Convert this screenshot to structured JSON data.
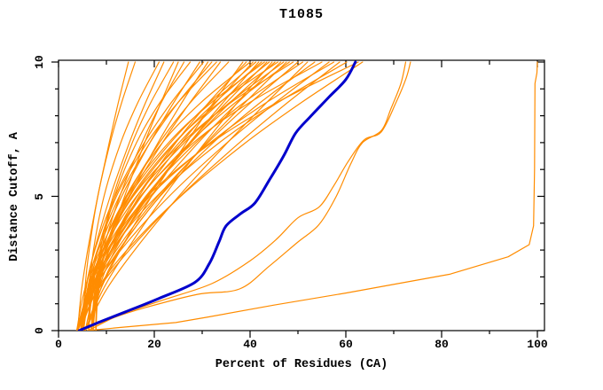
{
  "window": {
    "title": "T1085"
  },
  "chart_data": {
    "type": "line",
    "title": "T1085",
    "xlabel": "Percent of Residues (CA)",
    "ylabel": "Distance Cutoff, A",
    "xlim": [
      0,
      100
    ],
    "ylim": [
      0,
      10
    ],
    "x_major_ticks": [
      0,
      20,
      40,
      60,
      80,
      100
    ],
    "x_minor_ticks": [
      10,
      30,
      50,
      70,
      90
    ],
    "y_major_ticks": [
      0,
      5,
      10
    ],
    "y_minor_ticks": [
      1,
      2,
      3,
      4,
      6,
      7,
      8,
      9
    ],
    "grid": false,
    "legend": "none",
    "colors": {
      "model_line": "#ff8c00",
      "highlight_line": "#0000cc",
      "frame": "#000000",
      "background": "#ffffff",
      "text": "#000000"
    },
    "y_levels": [
      0,
      1.5,
      3,
      5,
      7,
      8.5,
      10
    ],
    "series": [
      {
        "name": "model-curve-01",
        "xs": [
          4.0,
          4.8,
          6.1,
          8.2,
          10.6,
          12.5,
          14.6
        ]
      },
      {
        "name": "model-curve-02",
        "xs": [
          5.2,
          5.5,
          6.4,
          8.2,
          10.8,
          13.2,
          16.0
        ]
      },
      {
        "name": "model-curve-03",
        "xs": [
          6.3,
          6.5,
          7.3,
          9.5,
          13.0,
          16.6,
          21.0
        ]
      },
      {
        "name": "model-curve-04",
        "xs": [
          4.6,
          5.6,
          7.5,
          10.8,
          14.8,
          18.2,
          22.0
        ]
      },
      {
        "name": "model-curve-05",
        "xs": [
          7.2,
          7.6,
          8.7,
          11.4,
          15.4,
          19.3,
          24.0
        ]
      },
      {
        "name": "model-curve-06",
        "xs": [
          5.6,
          7.4,
          9.9,
          13.8,
          18.0,
          21.4,
          25.0
        ]
      },
      {
        "name": "model-curve-07",
        "xs": [
          6.8,
          7.6,
          9.3,
          12.8,
          17.4,
          21.5,
          26.2
        ]
      },
      {
        "name": "model-curve-08",
        "xs": [
          7.8,
          8.0,
          9.0,
          11.7,
          16.3,
          21.2,
          27.5
        ]
      },
      {
        "name": "model-curve-09",
        "xs": [
          3.8,
          5.4,
          8.3,
          13.2,
          19.1,
          24.1,
          29.5
        ]
      },
      {
        "name": "model-curve-10",
        "xs": [
          5.0,
          5.7,
          7.6,
          11.8,
          17.9,
          23.6,
          30.3
        ]
      },
      {
        "name": "model-curve-11",
        "xs": [
          4.0,
          6.1,
          9.4,
          14.7,
          20.8,
          25.8,
          31.2
        ]
      },
      {
        "name": "model-curve-12",
        "xs": [
          5.2,
          6.0,
          8.1,
          12.7,
          19.1,
          25.0,
          32.0
        ]
      },
      {
        "name": "model-curve-13",
        "xs": [
          6.3,
          6.7,
          8.2,
          12.1,
          18.5,
          25.0,
          33.0
        ]
      },
      {
        "name": "model-curve-14",
        "xs": [
          4.6,
          6.3,
          9.4,
          14.9,
          21.7,
          27.5,
          33.8
        ]
      },
      {
        "name": "model-curve-15",
        "xs": [
          7.2,
          7.8,
          9.8,
          14.3,
          21.1,
          27.6,
          35.5
        ]
      },
      {
        "name": "model-curve-16",
        "xs": [
          5.6,
          8.7,
          12.9,
          19.4,
          26.7,
          32.4,
          38.5
        ]
      },
      {
        "name": "model-curve-17",
        "xs": [
          6.8,
          8.1,
          11.0,
          16.8,
          24.5,
          31.4,
          39.2
        ]
      },
      {
        "name": "model-curve-18",
        "xs": [
          7.8,
          8.2,
          9.7,
          14.1,
          21.7,
          29.8,
          40.0
        ]
      },
      {
        "name": "model-curve-19",
        "xs": [
          3.8,
          6.2,
          10.2,
          17.3,
          25.7,
          32.9,
          40.6
        ]
      },
      {
        "name": "model-curve-20",
        "xs": [
          5.0,
          6.0,
          8.7,
          14.7,
          23.4,
          31.6,
          41.2
        ]
      },
      {
        "name": "model-curve-21",
        "xs": [
          4.0,
          6.9,
          11.5,
          18.8,
          27.4,
          34.4,
          41.8
        ]
      },
      {
        "name": "model-curve-22",
        "xs": [
          5.2,
          6.3,
          9.2,
          15.5,
          24.4,
          32.7,
          42.4
        ]
      },
      {
        "name": "model-curve-23",
        "xs": [
          6.3,
          6.9,
          8.9,
          14.3,
          23.0,
          32.0,
          43.0
        ]
      },
      {
        "name": "model-curve-24",
        "xs": [
          4.6,
          6.9,
          11.0,
          18.4,
          27.4,
          35.1,
          43.5
        ]
      },
      {
        "name": "model-curve-25",
        "xs": [
          7.2,
          8.0,
          10.5,
          16.4,
          25.2,
          33.8,
          44.0
        ]
      },
      {
        "name": "model-curve-26",
        "xs": [
          5.6,
          9.2,
          14.3,
          22.0,
          30.6,
          37.4,
          44.6
        ]
      },
      {
        "name": "model-curve-27",
        "xs": [
          6.8,
          8.3,
          11.8,
          18.6,
          27.7,
          35.9,
          45.2
        ]
      },
      {
        "name": "model-curve-28",
        "xs": [
          7.8,
          8.2,
          10.0,
          15.3,
          24.2,
          33.7,
          45.8
        ]
      },
      {
        "name": "model-curve-29",
        "xs": [
          3.8,
          6.5,
          11.2,
          19.4,
          29.2,
          37.5,
          46.4
        ]
      },
      {
        "name": "model-curve-30",
        "xs": [
          5.0,
          6.1,
          9.3,
          16.3,
          26.3,
          35.8,
          47.0
        ]
      },
      {
        "name": "model-curve-31",
        "xs": [
          4.0,
          7.4,
          12.6,
          21.1,
          30.9,
          39.0,
          47.6
        ]
      },
      {
        "name": "model-curve-32",
        "xs": [
          5.2,
          6.5,
          9.8,
          17.2,
          27.4,
          37.0,
          48.2
        ]
      },
      {
        "name": "model-curve-33",
        "xs": [
          6.3,
          7.0,
          9.3,
          15.6,
          25.8,
          36.1,
          49.0
        ]
      },
      {
        "name": "model-curve-34",
        "xs": [
          4.6,
          7.2,
          12.1,
          20.7,
          31.2,
          40.2,
          50.0
        ]
      },
      {
        "name": "model-curve-35",
        "xs": [
          7.2,
          8.2,
          11.1,
          18.2,
          28.7,
          38.8,
          51.0
        ]
      },
      {
        "name": "model-curve-36",
        "xs": [
          5.6,
          9.9,
          15.9,
          25.1,
          35.3,
          43.5,
          52.0
        ]
      },
      {
        "name": "model-curve-37",
        "xs": [
          6.8,
          8.7,
          12.8,
          21.2,
          32.3,
          42.2,
          53.5
        ]
      },
      {
        "name": "model-curve-38",
        "xs": [
          7.8,
          8.4,
          10.6,
          17.1,
          28.2,
          40.0,
          55.0
        ]
      },
      {
        "name": "model-curve-39",
        "xs": [
          3.8,
          7.2,
          13.0,
          23.1,
          35.2,
          45.4,
          56.5
        ]
      },
      {
        "name": "model-curve-40",
        "xs": [
          5.0,
          6.4,
          10.4,
          19.1,
          31.7,
          43.5,
          57.5
        ]
      },
      {
        "name": "model-curve-41",
        "xs": [
          4.0,
          8.2,
          14.8,
          25.4,
          37.8,
          47.9,
          58.7
        ]
      },
      {
        "name": "model-curve-42",
        "xs": [
          5.2,
          6.8,
          11.1,
          20.5,
          33.6,
          45.9,
          60.2
        ]
      },
      {
        "name": "model-curve-43",
        "xs": [
          6.3,
          7.2,
          10.3,
          18.6,
          32.0,
          45.7,
          62.6
        ]
      },
      {
        "name": "model-curve-44",
        "xs": [
          4.6,
          8.0,
          14.3,
          25.5,
          39.1,
          50.8,
          63.5
        ]
      },
      {
        "name": "model-curve-45",
        "smooth": true,
        "points": [
          [
            5.0,
            0
          ],
          [
            11,
            0.45
          ],
          [
            18,
            0.85
          ],
          [
            29,
            1.35
          ],
          [
            37.8,
            1.55
          ],
          [
            44,
            2.4
          ],
          [
            50,
            3.3
          ],
          [
            54.4,
            3.95
          ],
          [
            58,
            5.0
          ],
          [
            61,
            6.2
          ],
          [
            63.5,
            7.0
          ],
          [
            67.4,
            7.45
          ],
          [
            69.5,
            8.3
          ],
          [
            71.5,
            9.2
          ],
          [
            72.5,
            10
          ]
        ]
      },
      {
        "name": "model-curve-46",
        "smooth": true,
        "points": [
          [
            6.2,
            0
          ],
          [
            13,
            0.6
          ],
          [
            22,
            1.15
          ],
          [
            32,
            1.75
          ],
          [
            40,
            2.6
          ],
          [
            45.5,
            3.4
          ],
          [
            50,
            4.2
          ],
          [
            54.4,
            4.6
          ],
          [
            57.5,
            5.4
          ],
          [
            60.5,
            6.3
          ],
          [
            63.8,
            7.1
          ],
          [
            67.4,
            7.4
          ],
          [
            70.5,
            8.5
          ],
          [
            72.6,
            9.4
          ],
          [
            73.5,
            10
          ]
        ]
      },
      {
        "name": "outlier-model-curve",
        "smooth": false,
        "points": [
          [
            6.0,
            0
          ],
          [
            13,
            0.12
          ],
          [
            24.5,
            0.3
          ],
          [
            31,
            0.5
          ],
          [
            45,
            0.95
          ],
          [
            60,
            1.4
          ],
          [
            69.3,
            1.7
          ],
          [
            81.7,
            2.1
          ],
          [
            93.9,
            2.75
          ],
          [
            98.3,
            3.2
          ],
          [
            99.2,
            3.9
          ],
          [
            99.4,
            6.0
          ],
          [
            99.5,
            9.2
          ],
          [
            99.9,
            9.6
          ],
          [
            100,
            10
          ]
        ]
      }
    ],
    "highlight_series": {
      "name": "highlighted-model-curve",
      "smooth": true,
      "points": [
        [
          4.3,
          0
        ],
        [
          9,
          0.35
        ],
        [
          14,
          0.7
        ],
        [
          21,
          1.2
        ],
        [
          28.5,
          1.8
        ],
        [
          31.5,
          2.5
        ],
        [
          33.5,
          3.3
        ],
        [
          35,
          3.9
        ],
        [
          38,
          4.35
        ],
        [
          41,
          4.75
        ],
        [
          44,
          5.6
        ],
        [
          47,
          6.5
        ],
        [
          49.5,
          7.35
        ],
        [
          52.5,
          7.95
        ],
        [
          56.5,
          8.7
        ],
        [
          60,
          9.35
        ],
        [
          62,
          10
        ]
      ]
    }
  }
}
